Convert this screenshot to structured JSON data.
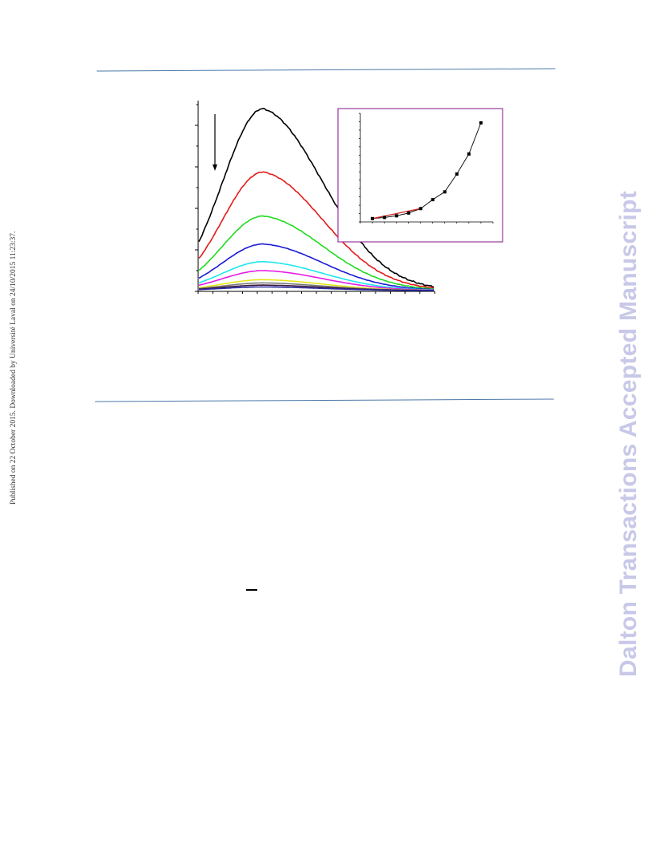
{
  "sidebar": {
    "published_note": "Published on 22 October 2015. Downloaded by Université Laval on 24/10/2015 11:23:37."
  },
  "watermark": {
    "text": "Dalton Transactions Accepted Manuscript"
  },
  "colors": {
    "rule": "#4a78a8",
    "inset_border": "#9a3a9a",
    "watermark": "#c8c8e8",
    "fit_line": "#cc2222"
  },
  "chart_data": [
    {
      "type": "line",
      "title": "",
      "xlabel": "",
      "ylabel": "",
      "annotation": "downward arrow: intensity decreases with each successive spectrum",
      "peak_x_fraction": 0.27,
      "series": [
        {
          "color": "#000000",
          "peak_height": 1.0
        },
        {
          "color": "#e21a1a",
          "peak_height": 0.652
        },
        {
          "color": "#1fdc1f",
          "peak_height": 0.41
        },
        {
          "color": "#1a1ad6",
          "peak_height": 0.256
        },
        {
          "color": "#1ee6ee",
          "peak_height": 0.159
        },
        {
          "color": "#e61ae6",
          "peak_height": 0.11
        },
        {
          "color": "#e6e61a",
          "peak_height": 0.06
        },
        {
          "color": "#7a7a7a",
          "peak_height": 0.042
        },
        {
          "color": "#3a1a3a",
          "peak_height": 0.03
        },
        {
          "color": "#2a2aa0",
          "peak_height": 0.02
        }
      ],
      "grid": false
    },
    {
      "type": "scatter",
      "title": "",
      "xlabel": "",
      "ylabel": "",
      "x": [
        1,
        2,
        3,
        4,
        5,
        6,
        7,
        8,
        9,
        10
      ],
      "y": [
        0.06,
        0.08,
        0.11,
        0.16,
        0.24,
        0.4,
        0.54,
        0.86,
        1.22,
        1.78
      ],
      "ylim": [
        0,
        1.95
      ],
      "xlim": [
        0,
        11
      ],
      "fit_line": {
        "x": [
          1,
          5
        ],
        "y": [
          0.06,
          0.24
        ]
      },
      "grid": false
    }
  ]
}
